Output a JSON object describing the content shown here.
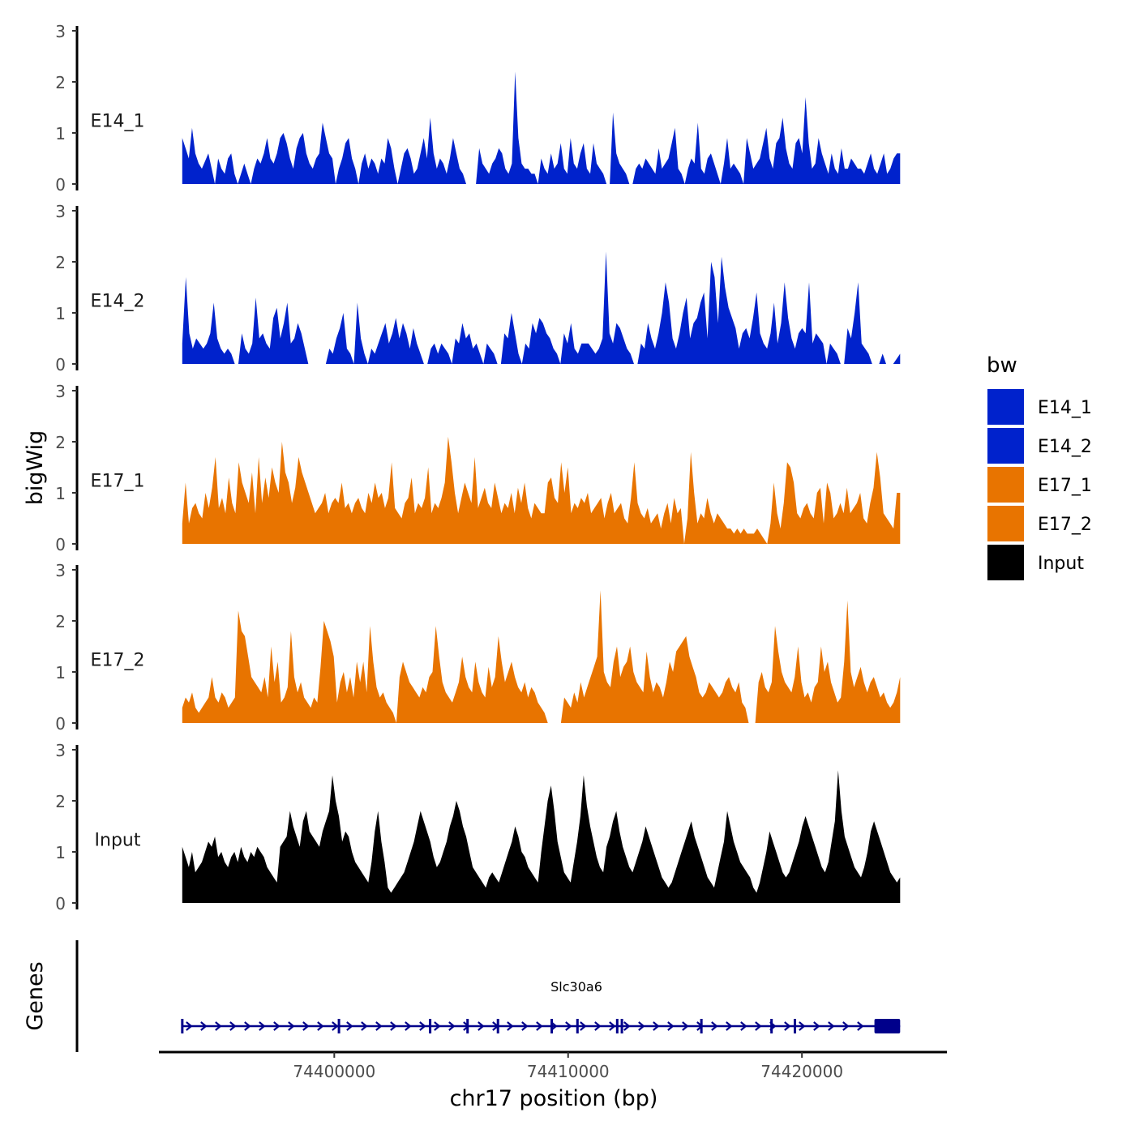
{
  "chart_data": {
    "type": "area",
    "ylabel": "bigWig",
    "xlabel": "chr17 position (bp)",
    "x_range": [
      74393500,
      74424200
    ],
    "xlim": [
      74392500,
      74426200
    ],
    "ylim": [
      0,
      3
    ],
    "y_ticks": [
      0,
      1,
      2,
      3
    ],
    "y_tick_labels": [
      "0",
      "1",
      "2",
      "3"
    ],
    "x_ticks": [
      74400000,
      74410000,
      74420000
    ],
    "x_tick_labels": [
      "74400000",
      "74410000",
      "74420000"
    ],
    "legend": {
      "title": "bw",
      "position": "right",
      "entries": [
        {
          "label": "E14_1",
          "color": "#0022cc"
        },
        {
          "label": "E14_2",
          "color": "#0022cc"
        },
        {
          "label": "E17_1",
          "color": "#e87400"
        },
        {
          "label": "E17_2",
          "color": "#e87400"
        },
        {
          "label": "Input",
          "color": "#000000"
        }
      ]
    },
    "series": [
      {
        "name": "E14_1",
        "color": "#0022cc",
        "values": [
          0.9,
          0.7,
          0.5,
          1.1,
          0.6,
          0.4,
          0.3,
          0.45,
          0.6,
          0.3,
          0,
          0.5,
          0.3,
          0.2,
          0.5,
          0.6,
          0.2,
          0,
          0.2,
          0.4,
          0.2,
          0,
          0.3,
          0.5,
          0.4,
          0.6,
          0.9,
          0.5,
          0.4,
          0.6,
          0.9,
          1,
          0.8,
          0.5,
          0.3,
          0.7,
          0.9,
          1,
          0.6,
          0.4,
          0.3,
          0.5,
          0.6,
          1.2,
          0.9,
          0.6,
          0.5,
          0,
          0.3,
          0.5,
          0.8,
          0.9,
          0.5,
          0.3,
          0,
          0.4,
          0.6,
          0.3,
          0.5,
          0.4,
          0.2,
          0.5,
          0.4,
          0.9,
          0.7,
          0.3,
          0,
          0.3,
          0.6,
          0.7,
          0.5,
          0.2,
          0.3,
          0.6,
          0.9,
          0.5,
          1.3,
          0.6,
          0.3,
          0.5,
          0.4,
          0.2,
          0.5,
          0.9,
          0.6,
          0.3,
          0.2,
          0,
          0,
          0,
          0,
          0.7,
          0.4,
          0.3,
          0.2,
          0.4,
          0.5,
          0.7,
          0.6,
          0.3,
          0.2,
          0.4,
          2.2,
          0.9,
          0.4,
          0.3,
          0.3,
          0.2,
          0.2,
          0,
          0.5,
          0.3,
          0.2,
          0.6,
          0.3,
          0.4,
          0.8,
          0.3,
          0.2,
          0.9,
          0.4,
          0.3,
          0.6,
          0.8,
          0.3,
          0.2,
          0.8,
          0.4,
          0.3,
          0.2,
          0,
          0,
          1.4,
          0.6,
          0.4,
          0.3,
          0.2,
          0,
          0,
          0.3,
          0.4,
          0.3,
          0.5,
          0.4,
          0.3,
          0.2,
          0.7,
          0.3,
          0.4,
          0.5,
          0.8,
          1.1,
          0.3,
          0.2,
          0,
          0.3,
          0.5,
          0.4,
          1.2,
          0.3,
          0.2,
          0.5,
          0.6,
          0.4,
          0.2,
          0,
          0.4,
          0.9,
          0.3,
          0.4,
          0.3,
          0.2,
          0,
          0.9,
          0.6,
          0.3,
          0.4,
          0.5,
          0.8,
          1.1,
          0.5,
          0.3,
          0.8,
          0.9,
          1.3,
          0.7,
          0.4,
          0.3,
          0.8,
          0.9,
          0.6,
          1.7,
          0.8,
          0.3,
          0.4,
          0.9,
          0.6,
          0.4,
          0.2,
          0.6,
          0.3,
          0.2,
          0.7,
          0.3,
          0.3,
          0.5,
          0.4,
          0.3,
          0.3,
          0.2,
          0.4,
          0.6,
          0.3,
          0.2,
          0.4,
          0.6,
          0.2,
          0.3,
          0.5,
          0.6,
          0.6
        ]
      },
      {
        "name": "E14_2",
        "color": "#0022cc",
        "values": [
          0.4,
          1.7,
          0.6,
          0.3,
          0.5,
          0.4,
          0.3,
          0.4,
          0.6,
          1.2,
          0.5,
          0.3,
          0.2,
          0.3,
          0.2,
          0,
          0,
          0.6,
          0.3,
          0.2,
          0.4,
          1.3,
          0.5,
          0.6,
          0.4,
          0.3,
          0.9,
          1.1,
          0.5,
          0.8,
          1.2,
          0.4,
          0.5,
          0.8,
          0.6,
          0.3,
          0,
          0,
          0,
          0,
          0,
          0,
          0.3,
          0.2,
          0.5,
          0.7,
          1.0,
          0.3,
          0.2,
          0,
          1.2,
          0.5,
          0.2,
          0,
          0.3,
          0.2,
          0.4,
          0.6,
          0.8,
          0.4,
          0.6,
          0.9,
          0.5,
          0.8,
          0.6,
          0.3,
          0.7,
          0.4,
          0.2,
          0,
          0,
          0.3,
          0.4,
          0.2,
          0.4,
          0.3,
          0.2,
          0,
          0.5,
          0.4,
          0.8,
          0.5,
          0.6,
          0.3,
          0.4,
          0.2,
          0,
          0.4,
          0.3,
          0.2,
          0,
          0,
          0.6,
          0.5,
          1.0,
          0.6,
          0.2,
          0,
          0.4,
          0.3,
          0.8,
          0.6,
          0.9,
          0.8,
          0.6,
          0.5,
          0.3,
          0.2,
          0,
          0.6,
          0.4,
          0.8,
          0.3,
          0.2,
          0.4,
          0.4,
          0.4,
          0.3,
          0.2,
          0.3,
          0.5,
          2.2,
          0.6,
          0.4,
          0.8,
          0.7,
          0.5,
          0.3,
          0.2,
          0,
          0,
          0.4,
          0.3,
          0.8,
          0.5,
          0.3,
          0.6,
          1.0,
          1.6,
          1.2,
          0.5,
          0.3,
          0.6,
          1.0,
          1.3,
          0.5,
          0.8,
          0.9,
          1.2,
          1.4,
          0.5,
          2.0,
          1.7,
          0.8,
          2.1,
          1.5,
          1.1,
          0.9,
          0.7,
          0.3,
          0.6,
          0.7,
          0.5,
          0.9,
          1.4,
          0.6,
          0.4,
          0.3,
          0.6,
          1.2,
          0.4,
          0.8,
          1.6,
          0.9,
          0.5,
          0.3,
          0.6,
          0.7,
          0.6,
          1.6,
          0.4,
          0.6,
          0.5,
          0.4,
          0,
          0.4,
          0.3,
          0.2,
          0,
          0,
          0.7,
          0.5,
          1.0,
          1.6,
          0.4,
          0.3,
          0.2,
          0,
          0,
          0,
          0.2,
          0,
          0,
          0,
          0.1,
          0.2
        ]
      },
      {
        "name": "E17_1",
        "color": "#e87400",
        "values": [
          0.4,
          1.2,
          0.4,
          0.7,
          0.8,
          0.6,
          0.5,
          1.0,
          0.7,
          1.1,
          1.7,
          0.7,
          0.9,
          0.6,
          1.3,
          0.8,
          0.6,
          1.6,
          1.2,
          1.0,
          0.8,
          1.4,
          0.6,
          1.7,
          0.8,
          1.3,
          0.9,
          1.5,
          1.2,
          1.0,
          2.0,
          1.4,
          1.2,
          0.8,
          1.1,
          1.7,
          1.4,
          1.2,
          1.0,
          0.8,
          0.6,
          0.7,
          0.8,
          1.0,
          0.6,
          0.8,
          0.9,
          0.8,
          1.2,
          0.7,
          0.8,
          0.6,
          0.8,
          0.9,
          0.7,
          0.6,
          1.0,
          0.8,
          1.2,
          0.9,
          1.0,
          0.7,
          0.9,
          1.6,
          0.7,
          0.6,
          0.5,
          0.8,
          0.9,
          1.3,
          0.6,
          0.8,
          0.7,
          0.9,
          1.5,
          0.6,
          0.8,
          0.7,
          0.9,
          1.2,
          2.1,
          1.6,
          1.0,
          0.6,
          0.9,
          1.2,
          1.0,
          0.8,
          1.7,
          0.7,
          0.9,
          1.1,
          0.8,
          0.7,
          1.2,
          0.9,
          0.6,
          0.8,
          0.7,
          1.0,
          0.6,
          1.1,
          0.8,
          1.2,
          0.7,
          0.5,
          0.8,
          0.7,
          0.6,
          0.6,
          1.2,
          1.3,
          0.9,
          0.8,
          1.6,
          1.0,
          1.5,
          0.6,
          0.8,
          0.7,
          0.9,
          0.8,
          1.0,
          0.6,
          0.7,
          0.8,
          0.9,
          0.5,
          0.8,
          1.0,
          0.6,
          0.7,
          0.8,
          0.5,
          0.4,
          0.9,
          1.6,
          0.8,
          0.6,
          0.5,
          0.7,
          0.4,
          0.5,
          0.6,
          0.3,
          0.6,
          0.8,
          0.4,
          0.9,
          0.6,
          0.7,
          0,
          0.5,
          1.8,
          1.0,
          0.4,
          0.6,
          0.5,
          0.9,
          0.6,
          0.4,
          0.6,
          0.5,
          0.4,
          0.3,
          0.3,
          0.2,
          0.3,
          0.2,
          0.3,
          0.2,
          0.2,
          0.2,
          0.3,
          0.2,
          0.1,
          0,
          0.4,
          1.2,
          0.6,
          0.3,
          0.8,
          1.6,
          1.5,
          1.2,
          0.6,
          0.5,
          0.7,
          0.8,
          0.6,
          0.5,
          1.0,
          1.1,
          0.4,
          1.2,
          1.0,
          0.5,
          0.6,
          0.8,
          0.6,
          1.1,
          0.6,
          0.7,
          0.8,
          1.0,
          0.5,
          0.4,
          0.8,
          1.1,
          1.8,
          1.3,
          0.6,
          0.5,
          0.4,
          0.3,
          1.0,
          1.0
        ]
      },
      {
        "name": "E17_2",
        "color": "#e87400",
        "values": [
          0.3,
          0.5,
          0.4,
          0.6,
          0.3,
          0.2,
          0.3,
          0.4,
          0.5,
          0.9,
          0.5,
          0.4,
          0.6,
          0.5,
          0.3,
          0.4,
          0.5,
          2.2,
          1.8,
          1.7,
          1.3,
          0.9,
          0.8,
          0.7,
          0.6,
          0.9,
          0.5,
          1.5,
          0.8,
          1.2,
          0.4,
          0.5,
          0.7,
          1.8,
          0.9,
          0.6,
          0.8,
          0.5,
          0.4,
          0.3,
          0.5,
          0.4,
          1.1,
          2.0,
          1.8,
          1.6,
          1.3,
          0.4,
          0.8,
          1.0,
          0.6,
          0.9,
          0.5,
          1.2,
          0.8,
          1.2,
          0.6,
          1.9,
          1.2,
          0.7,
          0.5,
          0.6,
          0.4,
          0.3,
          0.2,
          0,
          0.9,
          1.2,
          1.0,
          0.8,
          0.7,
          0.6,
          0.5,
          0.7,
          0.6,
          0.9,
          1.0,
          1.9,
          1.3,
          0.8,
          0.6,
          0.5,
          0.4,
          0.6,
          0.8,
          1.3,
          0.9,
          0.7,
          0.6,
          1.2,
          0.8,
          0.6,
          0.5,
          1.1,
          0.7,
          0.9,
          1.7,
          1.2,
          0.8,
          1.0,
          1.2,
          0.9,
          0.7,
          0.6,
          0.8,
          0.5,
          0.7,
          0.6,
          0.4,
          0.3,
          0.2,
          0,
          0,
          0,
          0,
          0,
          0.5,
          0.4,
          0.3,
          0.6,
          0.4,
          0.8,
          0.5,
          0.7,
          0.9,
          1.1,
          1.3,
          2.6,
          1.0,
          0.8,
          0.7,
          1.2,
          1.5,
          0.9,
          1.1,
          1.2,
          1.5,
          1.0,
          0.8,
          0.7,
          0.6,
          1.4,
          0.9,
          0.6,
          0.8,
          0.7,
          0.5,
          0.8,
          1.2,
          1.0,
          1.4,
          1.5,
          1.6,
          1.7,
          1.3,
          1.1,
          0.9,
          0.6,
          0.5,
          0.6,
          0.8,
          0.7,
          0.6,
          0.5,
          0.6,
          0.8,
          0.9,
          0.7,
          0.6,
          0.8,
          0.4,
          0.3,
          0,
          0,
          0,
          0.8,
          1.0,
          0.7,
          0.6,
          0.8,
          1.9,
          1.4,
          1.0,
          0.8,
          0.7,
          0.6,
          0.9,
          1.5,
          0.8,
          0.5,
          0.6,
          0.4,
          0.7,
          0.8,
          1.5,
          1.0,
          1.2,
          0.8,
          0.6,
          0.4,
          0.5,
          1.2,
          2.4,
          1.0,
          0.7,
          0.9,
          1.1,
          0.8,
          0.6,
          0.8,
          0.9,
          0.7,
          0.5,
          0.6,
          0.4,
          0.3,
          0.4,
          0.6,
          0.9
        ]
      },
      {
        "name": "Input",
        "color": "#000000",
        "values": [
          1.1,
          0.9,
          0.7,
          1.0,
          0.6,
          0.7,
          0.8,
          1.0,
          1.2,
          1.1,
          1.3,
          0.9,
          1.0,
          0.8,
          0.7,
          0.9,
          1.0,
          0.8,
          1.1,
          0.9,
          0.8,
          1.0,
          0.9,
          1.1,
          1.0,
          0.9,
          0.7,
          0.6,
          0.5,
          0.4,
          1.1,
          1.2,
          1.3,
          1.8,
          1.5,
          1.3,
          1.1,
          1.6,
          1.8,
          1.4,
          1.3,
          1.2,
          1.1,
          1.4,
          1.6,
          1.8,
          2.5,
          2.0,
          1.7,
          1.2,
          1.4,
          1.3,
          1.0,
          0.8,
          0.7,
          0.6,
          0.5,
          0.4,
          0.8,
          1.4,
          1.8,
          1.2,
          0.8,
          0.3,
          0.2,
          0.3,
          0.4,
          0.5,
          0.6,
          0.8,
          1.0,
          1.2,
          1.5,
          1.8,
          1.6,
          1.4,
          1.2,
          0.9,
          0.7,
          0.8,
          1.0,
          1.2,
          1.5,
          1.7,
          2.0,
          1.8,
          1.5,
          1.3,
          1.0,
          0.7,
          0.6,
          0.5,
          0.4,
          0.3,
          0.5,
          0.6,
          0.5,
          0.4,
          0.6,
          0.8,
          1.0,
          1.2,
          1.5,
          1.3,
          1.0,
          0.9,
          0.7,
          0.6,
          0.5,
          0.4,
          1.0,
          1.5,
          2.0,
          2.3,
          1.8,
          1.2,
          0.9,
          0.6,
          0.5,
          0.4,
          0.8,
          1.2,
          1.7,
          2.5,
          1.9,
          1.5,
          1.2,
          0.9,
          0.7,
          0.6,
          1.1,
          1.3,
          1.6,
          1.8,
          1.4,
          1.1,
          0.9,
          0.7,
          0.6,
          0.8,
          1.0,
          1.2,
          1.5,
          1.3,
          1.1,
          0.9,
          0.7,
          0.5,
          0.4,
          0.3,
          0.4,
          0.6,
          0.8,
          1.0,
          1.2,
          1.4,
          1.6,
          1.3,
          1.1,
          0.9,
          0.7,
          0.5,
          0.4,
          0.3,
          0.6,
          0.9,
          1.2,
          1.8,
          1.5,
          1.2,
          1.0,
          0.8,
          0.7,
          0.6,
          0.5,
          0.3,
          0.2,
          0.4,
          0.7,
          1.0,
          1.4,
          1.2,
          1.0,
          0.8,
          0.6,
          0.5,
          0.6,
          0.8,
          1.0,
          1.2,
          1.5,
          1.7,
          1.5,
          1.3,
          1.1,
          0.9,
          0.7,
          0.6,
          0.8,
          1.2,
          1.6,
          2.6,
          1.8,
          1.3,
          1.1,
          0.9,
          0.7,
          0.6,
          0.5,
          0.7,
          1.0,
          1.4,
          1.6,
          1.4,
          1.2,
          1.0,
          0.8,
          0.6,
          0.5,
          0.4,
          0.5
        ]
      }
    ],
    "genes_track": {
      "title": "Genes",
      "gene_name": "Slc30a6",
      "strand": "+",
      "start": 74393500,
      "end": 74424200,
      "exons": [
        74393500,
        74400200,
        74404100,
        74405700,
        74407000,
        74409300,
        74410400,
        74412100,
        74412300,
        74415700,
        74418700,
        74419700
      ],
      "utr": [
        74423100,
        74424200
      ]
    }
  }
}
